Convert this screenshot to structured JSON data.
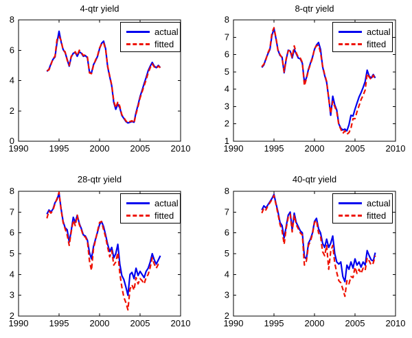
{
  "figure": {
    "background": "#ffffff",
    "axis_color": "#000000"
  },
  "chart_data": [
    {
      "type": "line",
      "title": "4-qtr yield",
      "xlabel": "",
      "ylabel": "",
      "xlim": [
        1990,
        2010
      ],
      "ylim": [
        0,
        8
      ],
      "xticks": [
        1990,
        1995,
        2000,
        2005,
        2010
      ],
      "yticks": [
        0,
        2,
        4,
        6,
        8
      ],
      "grid": false,
      "legend_position": "northeast",
      "x_start": 1993.5,
      "x_step": 0.25,
      "series": [
        {
          "name": "actual",
          "color": "#0000ee",
          "line_style": "solid",
          "values": [
            4.6,
            4.75,
            5.1,
            5.4,
            5.55,
            6.5,
            7.25,
            6.55,
            6.05,
            5.85,
            5.4,
            4.95,
            5.55,
            5.8,
            5.85,
            5.6,
            5.9,
            5.8,
            5.6,
            5.65,
            5.5,
            4.55,
            4.5,
            5.05,
            5.3,
            5.6,
            6.1,
            6.45,
            6.6,
            6.1,
            4.9,
            4.25,
            3.65,
            2.55,
            2.1,
            2.45,
            2.2,
            1.7,
            1.5,
            1.3,
            1.2,
            1.25,
            1.3,
            1.25,
            1.9,
            2.4,
            2.95,
            3.35,
            3.8,
            4.2,
            4.65,
            4.95,
            5.2,
            4.95,
            4.85,
            5.0,
            4.85
          ]
        },
        {
          "name": "fitted",
          "color": "#ee1100",
          "line_style": "dashed",
          "values": [
            4.65,
            4.7,
            5.05,
            5.45,
            5.6,
            6.7,
            6.9,
            6.65,
            6.0,
            5.9,
            5.35,
            5.0,
            5.6,
            5.75,
            5.9,
            5.65,
            6.0,
            5.85,
            5.65,
            5.7,
            5.55,
            4.5,
            4.45,
            5.0,
            5.35,
            5.65,
            6.15,
            6.4,
            6.5,
            6.05,
            4.95,
            4.3,
            3.7,
            2.65,
            2.2,
            2.6,
            2.3,
            1.75,
            1.55,
            1.35,
            1.2,
            1.3,
            1.35,
            1.2,
            1.8,
            2.3,
            2.85,
            3.25,
            3.65,
            4.05,
            4.5,
            4.85,
            5.1,
            4.9,
            4.8,
            4.95,
            4.85
          ]
        }
      ]
    },
    {
      "type": "line",
      "title": "8-qtr yield",
      "xlabel": "",
      "ylabel": "",
      "xlim": [
        1990,
        2010
      ],
      "ylim": [
        1,
        8
      ],
      "xticks": [
        1990,
        1995,
        2000,
        2005,
        2010
      ],
      "yticks": [
        1,
        2,
        3,
        4,
        5,
        6,
        7,
        8
      ],
      "grid": false,
      "legend_position": "northeast",
      "x_start": 1993.5,
      "x_step": 0.25,
      "series": [
        {
          "name": "actual",
          "color": "#0000ee",
          "line_style": "solid",
          "values": [
            5.25,
            5.4,
            5.75,
            6.05,
            6.3,
            7.1,
            7.5,
            6.9,
            6.25,
            5.95,
            5.85,
            4.95,
            5.7,
            6.25,
            6.2,
            5.8,
            6.3,
            6.05,
            5.8,
            5.75,
            5.5,
            4.4,
            4.65,
            5.15,
            5.5,
            5.85,
            6.3,
            6.55,
            6.7,
            6.3,
            5.3,
            4.8,
            4.4,
            3.5,
            2.5,
            3.6,
            3.1,
            2.8,
            2.0,
            1.75,
            1.65,
            1.7,
            1.6,
            1.95,
            2.5,
            2.45,
            2.85,
            3.2,
            3.55,
            3.8,
            4.1,
            4.45,
            5.1,
            4.75,
            4.65,
            4.85,
            4.65
          ]
        },
        {
          "name": "fitted",
          "color": "#ee1100",
          "line_style": "dashed",
          "values": [
            5.3,
            5.45,
            5.7,
            6.1,
            6.35,
            7.25,
            7.55,
            6.95,
            6.2,
            6.0,
            5.8,
            5.0,
            5.75,
            6.2,
            6.25,
            5.85,
            6.5,
            6.1,
            5.85,
            5.8,
            5.55,
            4.2,
            4.6,
            5.1,
            5.45,
            5.8,
            6.35,
            6.5,
            6.55,
            6.1,
            5.35,
            4.85,
            4.45,
            3.45,
            2.6,
            3.3,
            3.0,
            2.7,
            1.95,
            1.7,
            1.45,
            1.6,
            1.4,
            1.5,
            1.75,
            2.3,
            2.3,
            2.7,
            3.05,
            3.4,
            3.65,
            3.95,
            4.9,
            4.7,
            4.55,
            4.8,
            4.6
          ]
        }
      ]
    },
    {
      "type": "line",
      "title": "28-qtr yield",
      "xlabel": "",
      "ylabel": "",
      "xlim": [
        1990,
        2010
      ],
      "ylim": [
        2,
        8
      ],
      "xticks": [
        1990,
        1995,
        2000,
        2005,
        2010
      ],
      "yticks": [
        2,
        3,
        4,
        5,
        6,
        7,
        8
      ],
      "grid": false,
      "legend_position": "northeast",
      "x_start": 1993.5,
      "x_step": 0.25,
      "series": [
        {
          "name": "actual",
          "color": "#0000ee",
          "line_style": "solid",
          "values": [
            6.9,
            7.1,
            7.0,
            7.15,
            7.45,
            7.6,
            7.9,
            7.15,
            6.55,
            6.25,
            6.15,
            5.55,
            6.1,
            6.75,
            6.5,
            6.85,
            6.45,
            6.2,
            5.9,
            5.85,
            5.65,
            5.05,
            4.75,
            5.35,
            5.7,
            6.05,
            6.4,
            6.55,
            6.3,
            5.9,
            5.45,
            5.1,
            5.3,
            4.8,
            5.0,
            5.45,
            4.5,
            3.95,
            3.75,
            3.4,
            3.0,
            4.0,
            4.1,
            3.8,
            4.3,
            3.95,
            4.15,
            4.0,
            3.85,
            4.15,
            4.3,
            4.6,
            5.0,
            4.7,
            4.5,
            4.7,
            4.9
          ]
        },
        {
          "name": "fitted",
          "color": "#ee1100",
          "line_style": "dashed",
          "values": [
            6.7,
            7.05,
            6.95,
            7.1,
            7.4,
            7.65,
            7.95,
            7.1,
            6.5,
            6.2,
            5.9,
            5.4,
            6.05,
            6.6,
            6.35,
            6.85,
            6.4,
            6.15,
            5.85,
            5.8,
            5.6,
            4.65,
            4.2,
            5.25,
            5.65,
            6.1,
            6.5,
            6.55,
            6.15,
            5.8,
            5.3,
            4.85,
            5.15,
            4.45,
            4.6,
            5.05,
            4.05,
            3.4,
            2.9,
            2.65,
            2.3,
            3.3,
            3.5,
            3.25,
            3.85,
            3.55,
            3.8,
            3.7,
            3.55,
            3.85,
            4.0,
            4.35,
            4.8,
            4.5,
            4.3,
            4.5,
            4.55
          ]
        }
      ]
    },
    {
      "type": "line",
      "title": "40-qtr yield",
      "xlabel": "",
      "ylabel": "",
      "xlim": [
        1990,
        2010
      ],
      "ylim": [
        2,
        8
      ],
      "xticks": [
        1990,
        1995,
        2000,
        2005,
        2010
      ],
      "yticks": [
        2,
        3,
        4,
        5,
        6,
        7,
        8
      ],
      "grid": false,
      "legend_position": "northeast",
      "x_start": 1993.5,
      "x_step": 0.25,
      "series": [
        {
          "name": "actual",
          "color": "#0000ee",
          "line_style": "solid",
          "values": [
            7.1,
            7.3,
            7.2,
            7.35,
            7.5,
            7.65,
            7.85,
            7.4,
            7.0,
            6.5,
            6.35,
            5.75,
            6.3,
            6.85,
            7.0,
            6.15,
            6.95,
            6.5,
            6.3,
            6.1,
            6.0,
            4.85,
            4.75,
            5.5,
            5.7,
            6.0,
            6.55,
            6.7,
            6.2,
            6.0,
            5.5,
            5.3,
            5.7,
            5.3,
            5.5,
            5.85,
            5.0,
            4.6,
            4.5,
            4.6,
            3.9,
            3.65,
            4.45,
            4.25,
            4.6,
            4.3,
            4.75,
            4.45,
            4.6,
            4.35,
            4.6,
            4.45,
            5.15,
            4.9,
            4.7,
            4.65,
            5.05
          ]
        },
        {
          "name": "fitted",
          "color": "#ee1100",
          "line_style": "dashed",
          "values": [
            6.95,
            7.2,
            7.1,
            7.3,
            7.45,
            7.6,
            7.8,
            7.35,
            6.9,
            6.4,
            6.1,
            5.45,
            6.2,
            6.75,
            6.9,
            6.05,
            6.85,
            6.4,
            6.2,
            6.0,
            5.9,
            4.45,
            4.65,
            5.4,
            5.6,
            5.95,
            6.5,
            6.6,
            6.0,
            5.85,
            5.1,
            4.9,
            5.4,
            4.25,
            5.1,
            5.4,
            4.55,
            4.1,
            3.7,
            3.6,
            3.3,
            2.95,
            3.7,
            3.55,
            3.9,
            3.85,
            4.35,
            4.05,
            4.25,
            4.05,
            4.3,
            4.2,
            4.8,
            4.65,
            4.45,
            4.55,
            4.9
          ]
        }
      ]
    }
  ]
}
